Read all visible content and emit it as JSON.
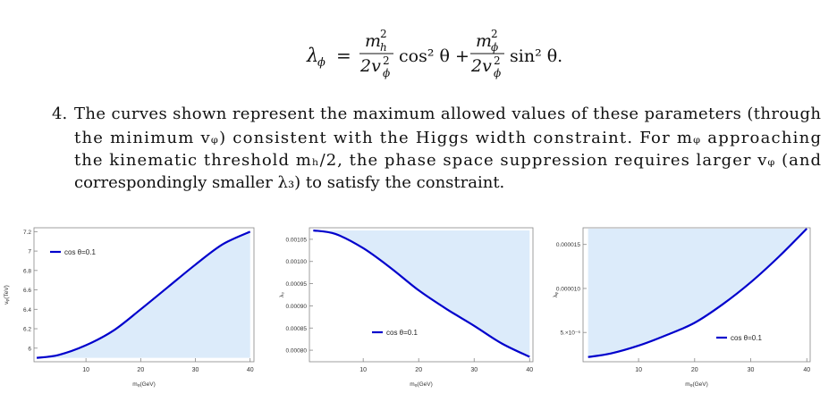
{
  "equation": {
    "lhs": "λ",
    "lhs_sub": "ϕ",
    "eq": "=",
    "num_m": "m",
    "sq": "2",
    "num1_sub": "h",
    "den": "2v",
    "den_sub": "ϕ",
    "term1": "cos² θ +",
    "num2_sub": "ϕ",
    "term2": "sin² θ."
  },
  "item": {
    "marker": "4.",
    "lines": [
      "The curves shown represent the maximum allowed values of these parameters (through",
      "the minimum vᵩ) consistent with the Higgs width constraint. For mᵩ approaching",
      "the kinematic threshold mₕ/2, the phase space suppression requires larger vᵩ (and",
      "correspondingly smaller λ₃) to satisfy the constraint."
    ]
  },
  "chart_data": [
    {
      "type": "line",
      "x_label": "mᵩ(GeV)",
      "y_label": "vᵩ(TeV)",
      "fill": "below",
      "legend": "upper left",
      "x": [
        1,
        5,
        10,
        15,
        20,
        25,
        30,
        35,
        40
      ],
      "series": [
        {
          "name": "cos θ=0.1",
          "color": "#0000cc",
          "fill_color": "#dcebfa",
          "values": [
            5.9,
            5.93,
            6.03,
            6.18,
            6.4,
            6.63,
            6.86,
            7.07,
            7.2
          ]
        }
      ],
      "xlim": [
        0.5,
        40.7
      ],
      "xticks": [
        10,
        20,
        30,
        40
      ],
      "ylim": [
        5.86,
        7.24
      ],
      "yticks": [
        6.0,
        6.2,
        6.4,
        6.6,
        6.8,
        7.0,
        7.2
      ]
    },
    {
      "type": "line",
      "x_label": "mᵩ(GeV)",
      "y_label": "λ₃",
      "fill": "above",
      "legend": "lower center",
      "x": [
        1,
        5,
        10,
        15,
        20,
        25,
        30,
        35,
        40
      ],
      "series": [
        {
          "name": "cos θ=0.1",
          "color": "#0000cc",
          "fill_color": "#dcebfa",
          "values": [
            0.00107,
            0.001062,
            0.00103,
            0.000985,
            0.000935,
            0.000893,
            0.000855,
            0.000815,
            0.000785
          ]
        }
      ],
      "xlim": [
        0.3,
        40.6
      ],
      "xticks": [
        10,
        20,
        30,
        40
      ],
      "ylim": [
        0.000774,
        0.001076
      ],
      "yticks": [
        {
          "value": 0.0008,
          "label": "0.00080"
        },
        {
          "value": 0.00085,
          "label": "0.00085"
        },
        {
          "value": 0.0009,
          "label": "0.00090"
        },
        {
          "value": 0.00095,
          "label": "0.00095"
        },
        {
          "value": 0.001,
          "label": "0.00100"
        },
        {
          "value": 0.00105,
          "label": "0.00105"
        }
      ]
    },
    {
      "type": "line",
      "x_label": "mᵩ(GeV)",
      "y_label": "λᵩ",
      "fill": "above",
      "legend": "lower right",
      "x": [
        1,
        5,
        10,
        15,
        20,
        25,
        30,
        35,
        40
      ],
      "series": [
        {
          "name": "cos θ=0.1",
          "color": "#0000cc",
          "fill_color": "#dcebfa",
          "values": [
            2.2e-06,
            2.6e-06,
            3.5e-06,
            4.7e-06,
            6.1e-06,
            8.2e-06,
            1.07e-05,
            1.36e-05,
            1.68e-05
          ]
        }
      ],
      "xlim": [
        0.1,
        40.6
      ],
      "xticks": [
        10,
        20,
        30,
        40
      ],
      "ylim": [
        1.67e-06,
        1.69e-05
      ],
      "yticks": [
        {
          "value": 5e-06,
          "label": "5.×10⁻⁶"
        },
        {
          "value": 1e-05,
          "label": "0.000010"
        },
        {
          "value": 1.5e-05,
          "label": "0.000015"
        }
      ]
    }
  ]
}
